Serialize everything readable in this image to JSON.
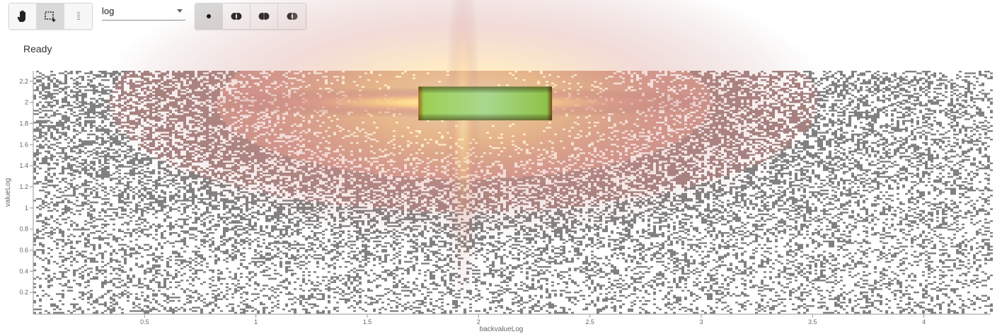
{
  "toolbar": {
    "interaction_tools": [
      {
        "name": "pan",
        "icon": "hand-icon",
        "active": false
      },
      {
        "name": "box-select",
        "icon": "box-select-icon",
        "active": true
      },
      {
        "name": "lasso-select",
        "icon": "lasso-select-icon",
        "active": false
      }
    ],
    "scale_select": {
      "value": "log"
    },
    "selection_modes": [
      {
        "name": "replace",
        "icon": "dot-icon",
        "active": true
      },
      {
        "name": "union",
        "icon": "union-icon",
        "active": false
      },
      {
        "name": "intersect",
        "icon": "intersect-icon",
        "active": false
      },
      {
        "name": "subtract",
        "icon": "subtract-icon",
        "active": false
      }
    ]
  },
  "status": {
    "text": "Ready"
  },
  "chart_data": {
    "type": "heatmap",
    "title": "",
    "xlabel": "backvalueLog",
    "ylabel": "valueLog",
    "xlim": [
      0,
      4.3
    ],
    "ylim": [
      0,
      2.3
    ],
    "x_ticks": [
      "0.5",
      "1",
      "1.5",
      "2",
      "2.5",
      "3",
      "3.5",
      "4"
    ],
    "y_ticks": [
      "0.2",
      "0.4",
      "0.6",
      "0.8",
      "1",
      "1.2",
      "1.4",
      "1.6",
      "1.8",
      "2",
      "2.2"
    ],
    "x_tick_values": [
      0.5,
      1,
      1.5,
      2,
      2.5,
      3,
      3.5,
      4
    ],
    "y_tick_values": [
      0.2,
      0.4,
      0.6,
      0.8,
      1,
      1.2,
      1.4,
      1.6,
      1.8,
      2,
      2.2
    ],
    "density_peak": {
      "x": 1.93,
      "y": 2.0
    },
    "selection_box": {
      "x": [
        1.73,
        2.33
      ],
      "y": [
        1.83,
        2.15
      ]
    },
    "colors": {
      "low": "#6a6a6a",
      "mid": "#c98a7e",
      "high": "#fff3a8",
      "selection": "#8fd05a"
    }
  }
}
